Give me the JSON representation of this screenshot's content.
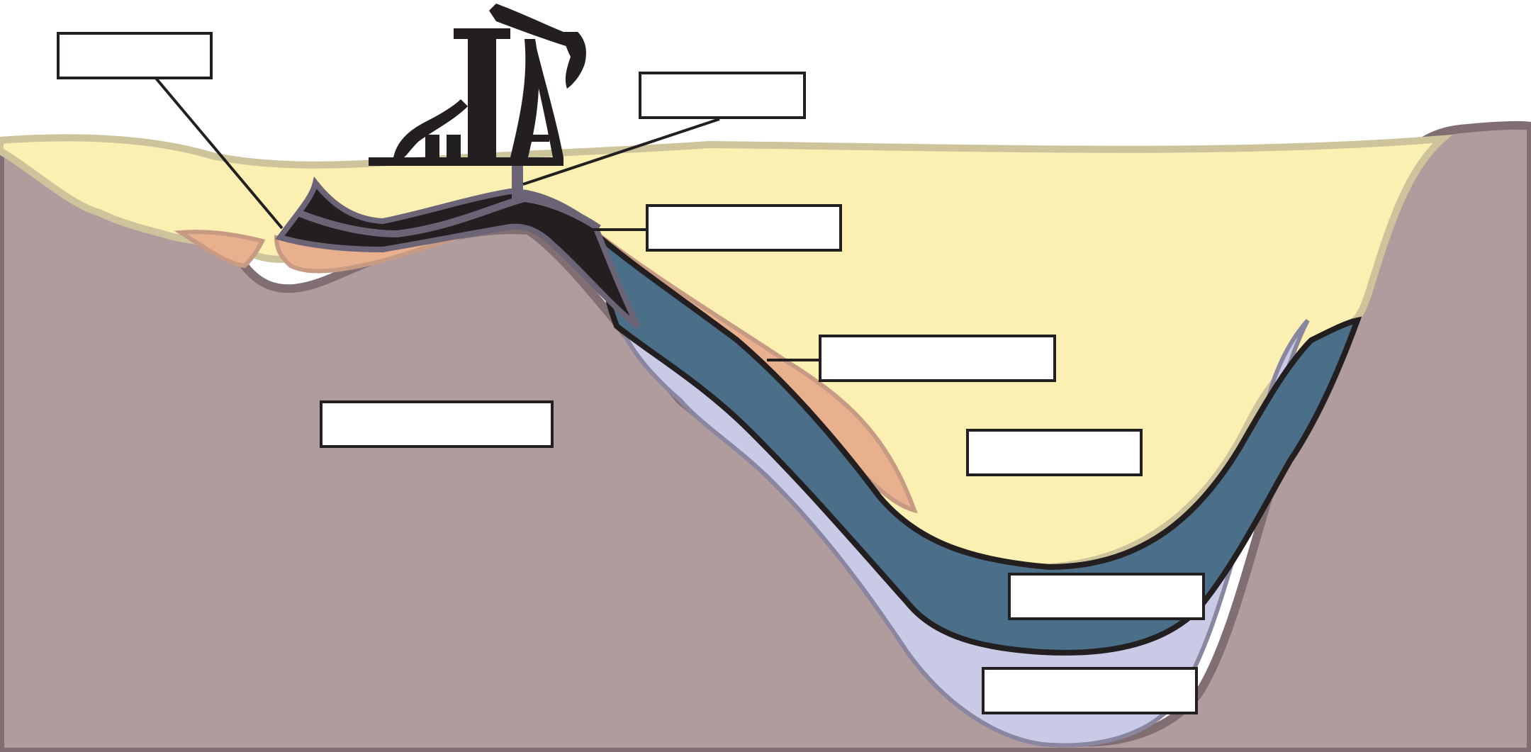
{
  "diagram": {
    "colors": {
      "rock": "#b09c9d",
      "rock_edge": "#806e72",
      "sand": "#fbf0b2",
      "sand_edge": "#cdc49b",
      "clay": "#e8b08d",
      "clay_edge": "#c79a84",
      "oil": "#231f20",
      "gas_cap": "#6b6376",
      "shale": "#4b6f88",
      "water": "#c9cae6",
      "rig": "#231f20"
    },
    "icons": [
      "oil-pump-jack-icon"
    ],
    "labels": [
      {
        "id": "label-1",
        "text": ""
      },
      {
        "id": "label-2",
        "text": ""
      },
      {
        "id": "label-3",
        "text": ""
      },
      {
        "id": "label-4",
        "text": ""
      },
      {
        "id": "label-5",
        "text": ""
      },
      {
        "id": "label-6",
        "text": ""
      },
      {
        "id": "label-7",
        "text": ""
      },
      {
        "id": "label-8",
        "text": ""
      }
    ]
  }
}
